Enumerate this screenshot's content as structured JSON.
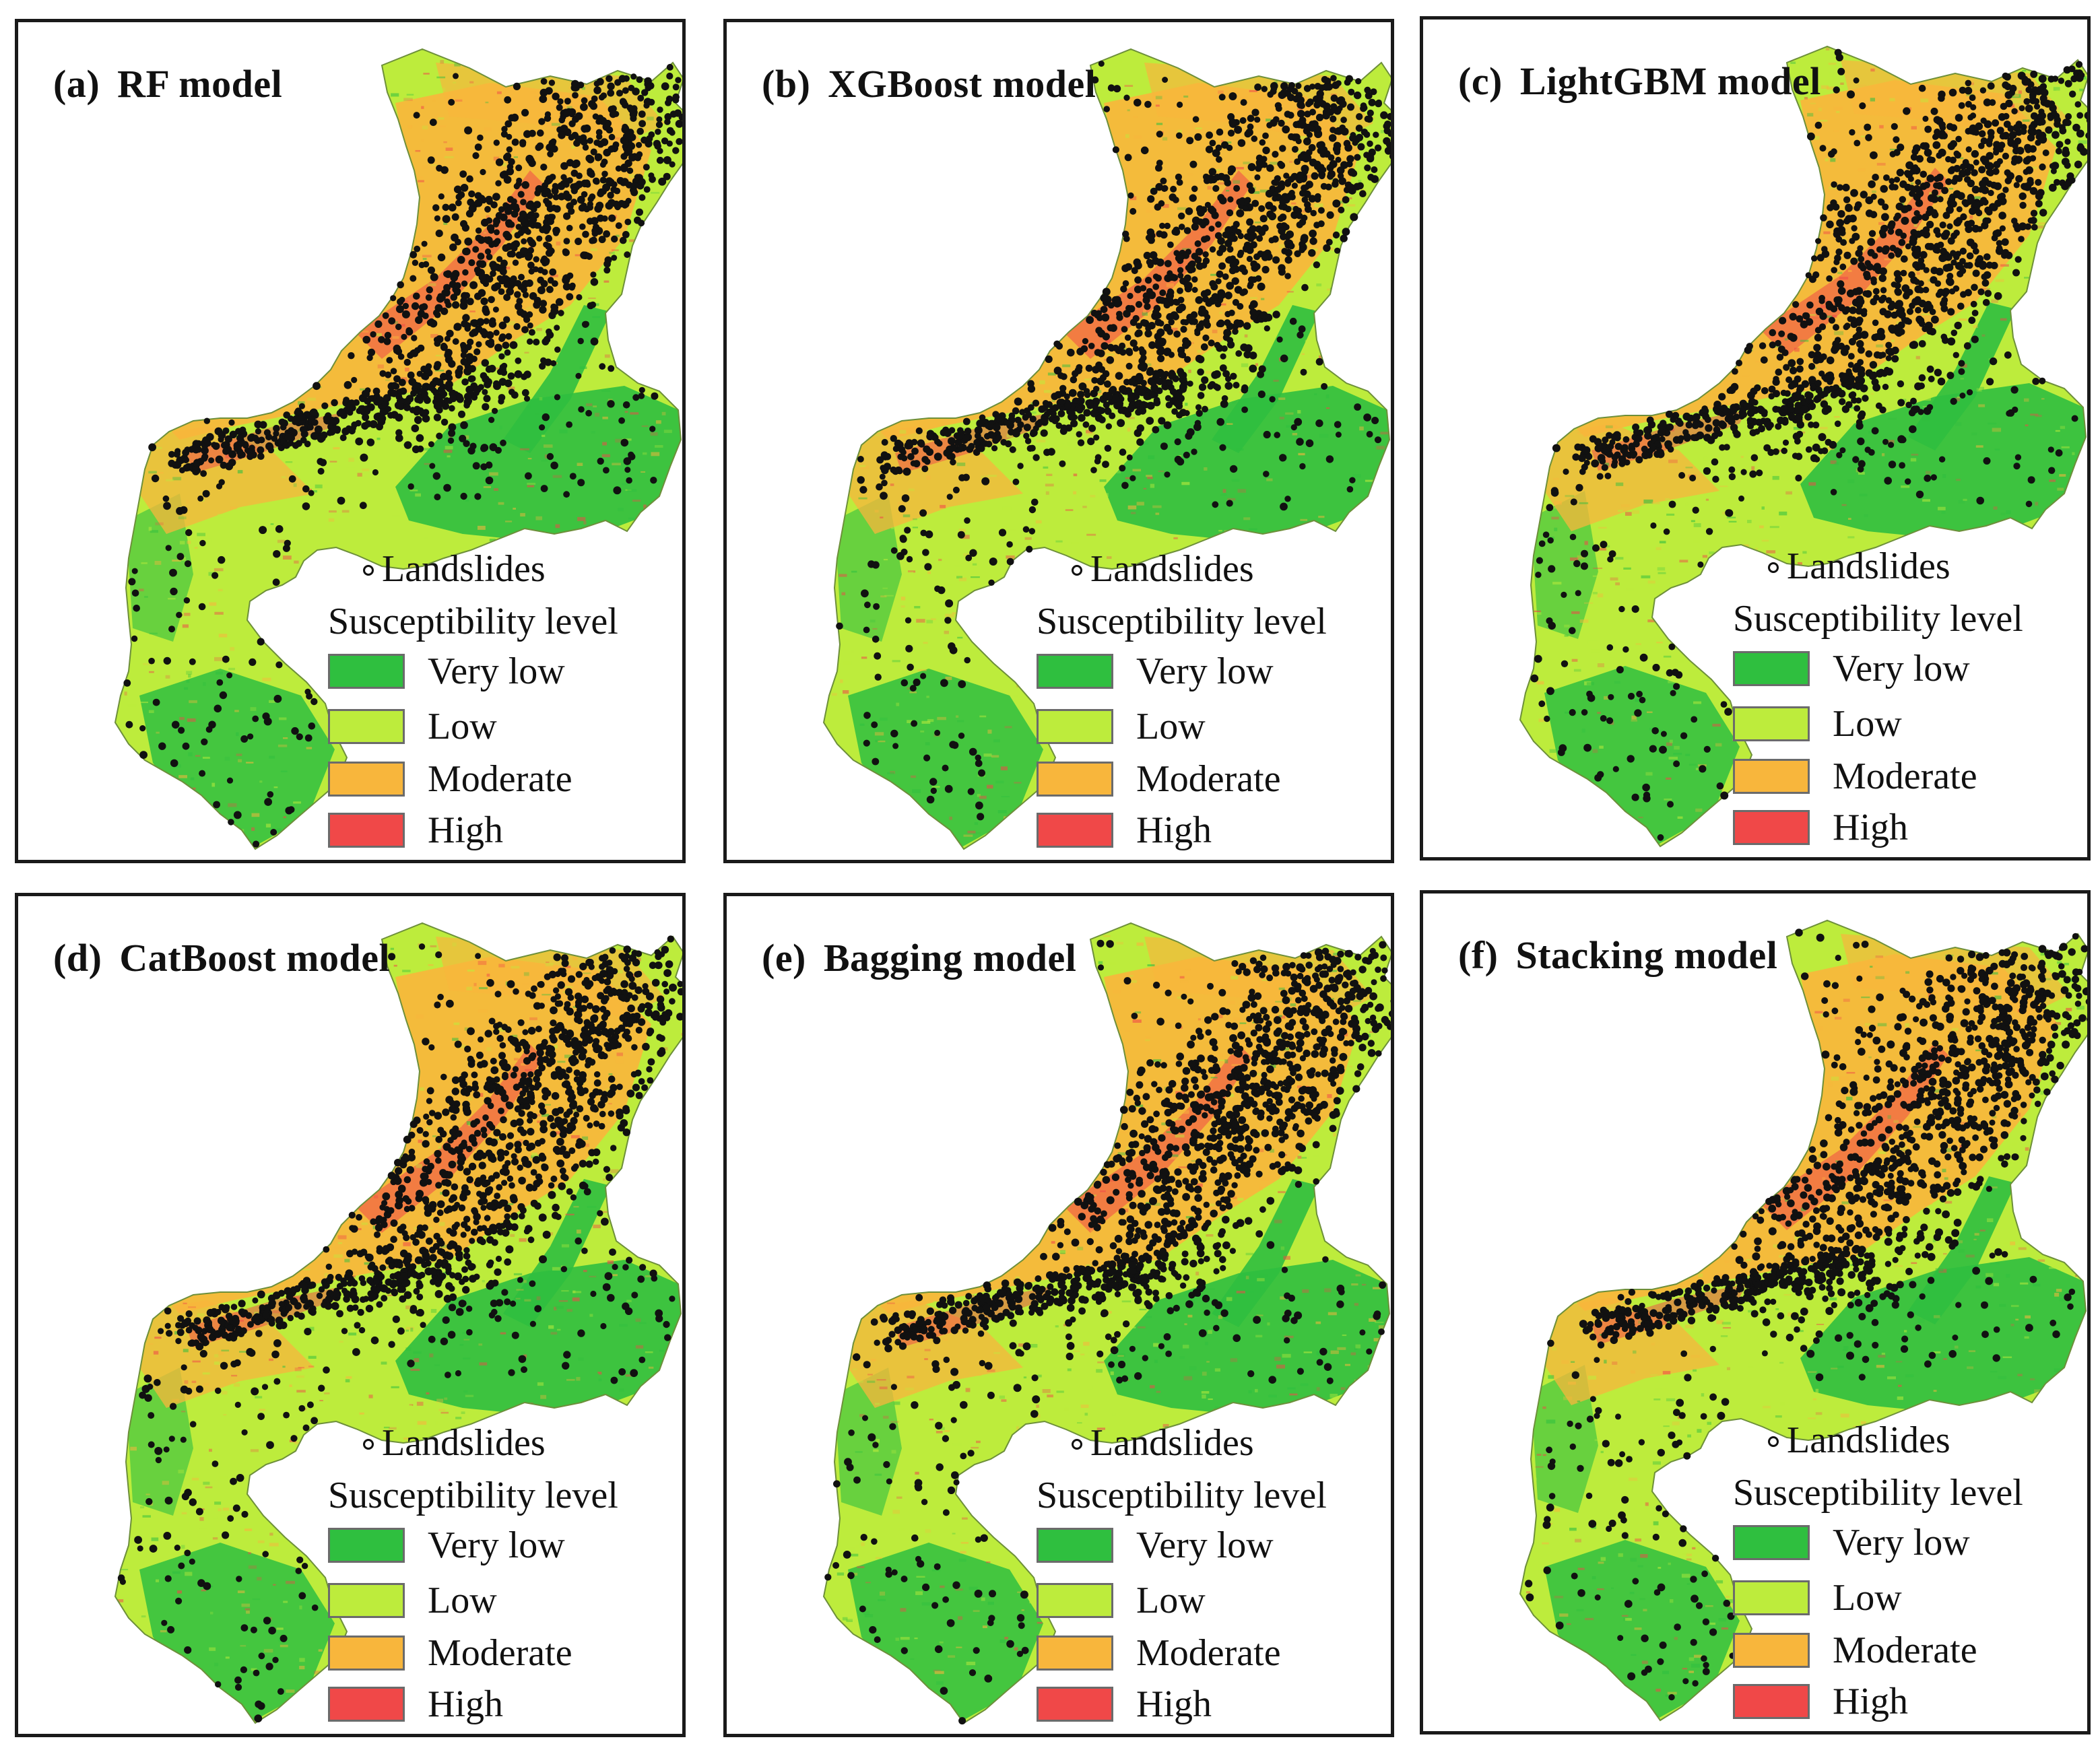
{
  "panels": [
    {
      "label": "(a)",
      "title": "RF model"
    },
    {
      "label": "(b)",
      "title": "XGBoost model"
    },
    {
      "label": "(c)",
      "title": "LightGBM model"
    },
    {
      "label": "(d)",
      "title": "CatBoost model"
    },
    {
      "label": "(e)",
      "title": "Bagging model"
    },
    {
      "label": "(f)",
      "title": "Stacking model"
    }
  ],
  "legend": {
    "point_label": "Landslides",
    "heading": "Susceptibility level",
    "classes": [
      {
        "label": "Very low",
        "color": "#2fbf3f"
      },
      {
        "label": "Low",
        "color": "#bdec3c"
      },
      {
        "label": "Moderate",
        "color": "#f8b63c"
      },
      {
        "label": "High",
        "color": "#f04848"
      }
    ]
  },
  "colors": {
    "very_low": "#2fbf3f",
    "low": "#bdec3c",
    "moderate": "#f8b63c",
    "high": "#f04848",
    "landslide": "#111111",
    "frame": "#1a1a1a"
  }
}
